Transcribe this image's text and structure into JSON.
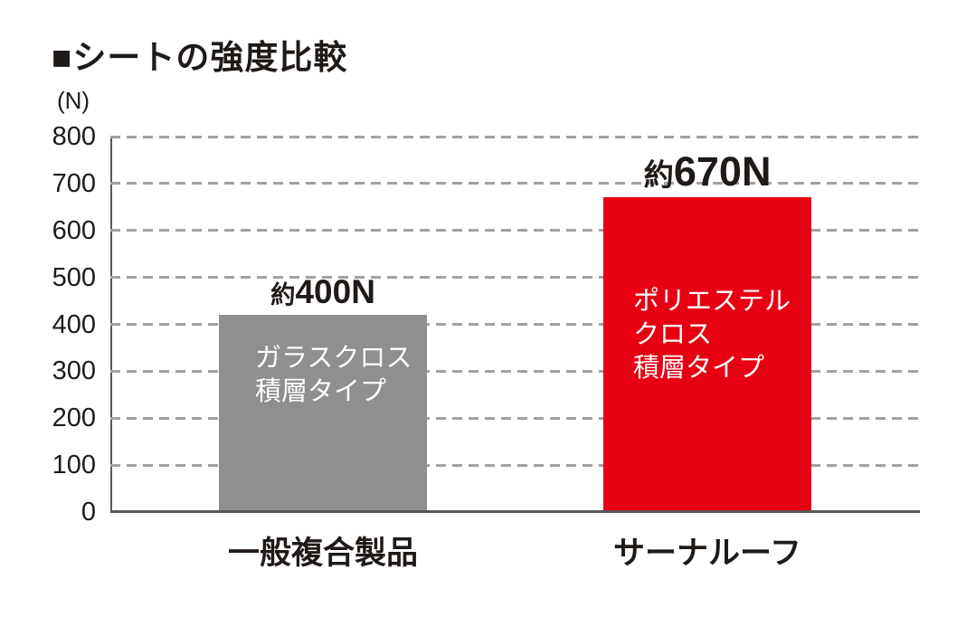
{
  "title": "■シートの強度比較",
  "colors": {
    "bar_gray": "#8f8f8f",
    "bar_red": "#e60012",
    "text": "#1f1a17",
    "gridline": "#a1a1a1",
    "axis": "#5a5755",
    "bar_inner_text": "#ffffff"
  },
  "chart_data": {
    "type": "bar",
    "title": "シートの強度比較",
    "ylabel": "(N)",
    "ylim": [
      0,
      800
    ],
    "ytick_interval": 100,
    "yticks": [
      800,
      700,
      600,
      500,
      400,
      300,
      200,
      100,
      0
    ],
    "grid": "horizontal-dashed",
    "legend": false,
    "categories": [
      "一般複合製品",
      "サーナルーフ"
    ],
    "values": [
      420,
      670
    ],
    "value_labels": [
      "約400N",
      "約670N"
    ],
    "bar_inner_labels": [
      [
        "ガラスクロス",
        "積層タイプ"
      ],
      [
        "ポリエステル",
        "クロス",
        "積層タイプ"
      ]
    ],
    "bar_colors": [
      "#8f8f8f",
      "#e60012"
    ]
  }
}
